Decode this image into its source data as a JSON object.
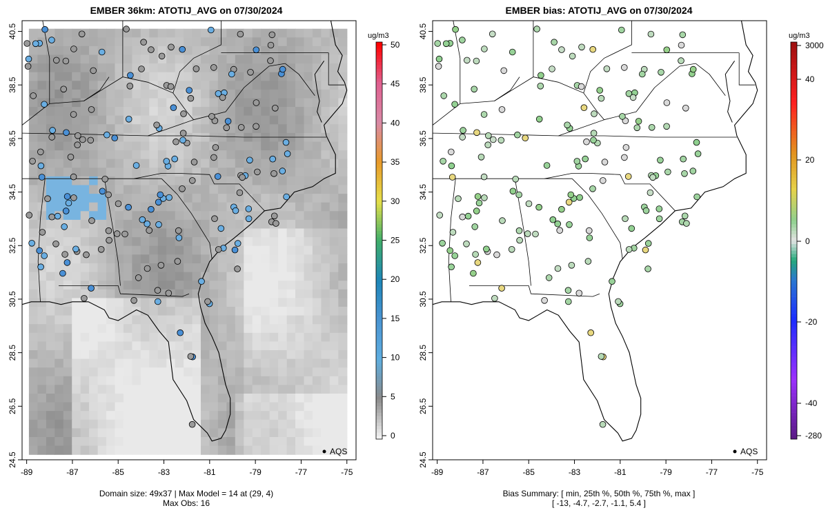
{
  "left_title": "EMBER 36km: ATOTIJ_AVG on 07/30/2024",
  "right_title": "EMBER bias: ATOTIJ_AVG on 07/30/2024",
  "left_footer_line1": "Domain size: 49x37 | Max Model = 14 at (29, 4)",
  "left_footer_line2": "Max Obs: 16",
  "right_footer_line1": "Bias Summary: [ min, 25th %, 50th %, 75th %, max ]",
  "right_footer_line2": "[ -13,   -4.7,   -2.7,   -1.1,   5.4 ]",
  "legend_label": "AQS",
  "left_unit": "ug/m3",
  "right_unit": "ug/m3",
  "chart_data": [
    {
      "type": "heatmap",
      "title": "EMBER 36km: ATOTIJ_AVG on 07/30/2024",
      "x_ticks": [
        "-89",
        "-87",
        "-85",
        "-83",
        "-81",
        "-79",
        "-77",
        "-75"
      ],
      "y_ticks": [
        "24.5",
        "26.5",
        "28.5",
        "30.5",
        "32.5",
        "34.5",
        "36.5",
        "38.5",
        "40.5"
      ],
      "xlim": [
        -89.2,
        -74.6
      ],
      "ylim": [
        24.5,
        40.9
      ],
      "colorbar": {
        "unit": "ug/m3",
        "ticks": [
          "0",
          "5",
          "10",
          "15",
          "20",
          "25",
          "30",
          "35",
          "40",
          "45",
          "50"
        ],
        "range": [
          0,
          50
        ]
      },
      "legend": "AQS"
    },
    {
      "type": "scatter",
      "title": "EMBER bias: ATOTIJ_AVG on 07/30/2024",
      "x_ticks": [
        "-89",
        "-87",
        "-85",
        "-83",
        "-81",
        "-79",
        "-77",
        "-75"
      ],
      "y_ticks": [
        "24.5",
        "26.5",
        "28.5",
        "30.5",
        "32.5",
        "34.5",
        "36.5",
        "38.5",
        "40.5"
      ],
      "xlim": [
        -89.2,
        -74.6
      ],
      "ylim": [
        24.5,
        40.9
      ],
      "colorbar": {
        "unit": "ug/m3",
        "ticks": [
          "3000",
          "40",
          "20",
          "0",
          "-20",
          "-40",
          "-280"
        ]
      },
      "bias_summary": {
        "min": -13,
        "p25": -4.7,
        "p50": -2.7,
        "p75": -1.1,
        "max": 5.4
      },
      "legend": "AQS"
    }
  ]
}
